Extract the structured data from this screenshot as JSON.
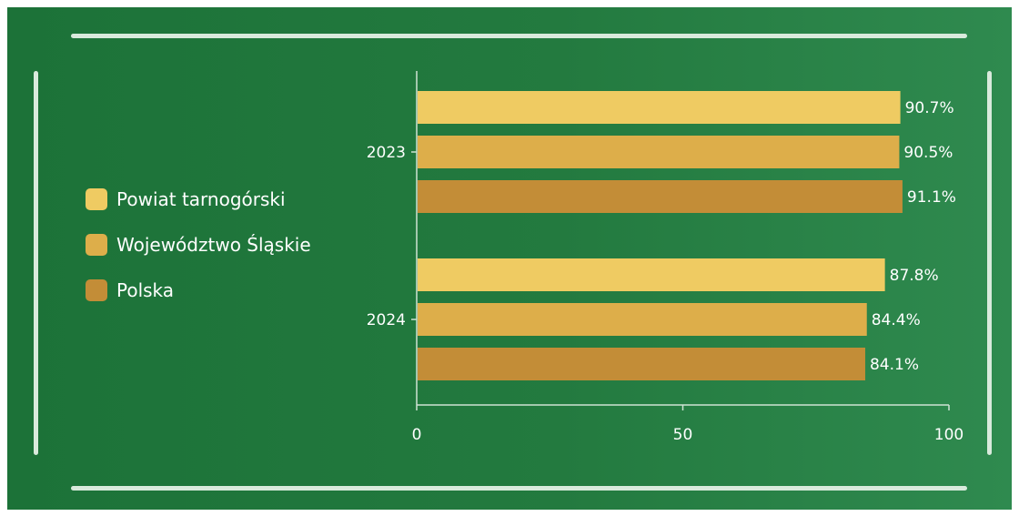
{
  "chart_data": {
    "type": "bar",
    "orientation": "horizontal",
    "categories": [
      "2023",
      "2024"
    ],
    "series": [
      {
        "name": "Powiat tarnogórski",
        "color": "#efcb62",
        "values": [
          90.7,
          87.8
        ],
        "labels": [
          "90.7%",
          "87.8%"
        ]
      },
      {
        "name": "Województwo Śląskie",
        "color": "#ddae4a",
        "values": [
          90.5,
          84.4
        ],
        "labels": [
          "90.5%",
          "84.4%"
        ]
      },
      {
        "name": "Polska",
        "color": "#c38d37",
        "values": [
          91.1,
          84.1
        ],
        "labels": [
          "91.1%",
          "84.1%"
        ]
      }
    ],
    "xlim": [
      0,
      100
    ],
    "x_ticks": [
      "0",
      "50",
      "100"
    ],
    "value_suffix": "%",
    "legend_position": "left",
    "grid": false
  }
}
